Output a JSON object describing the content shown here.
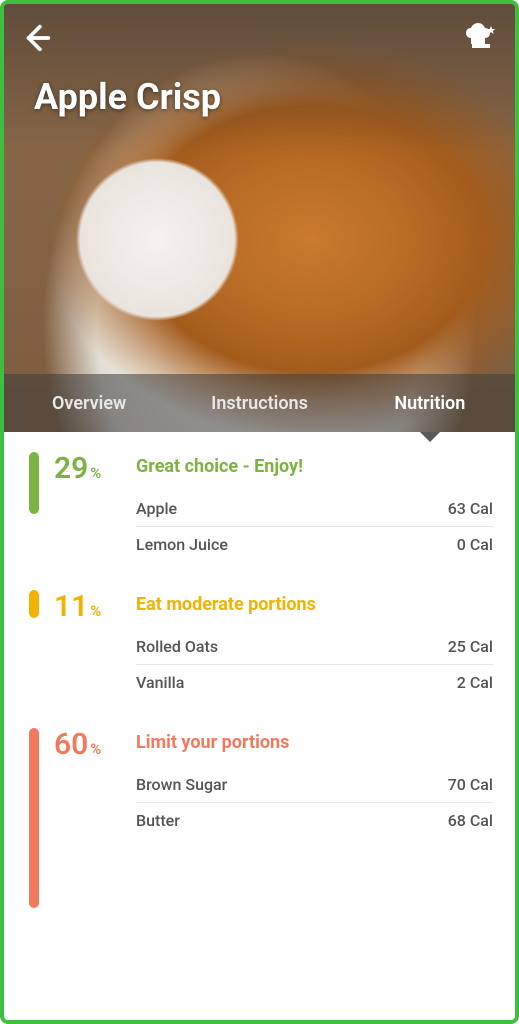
{
  "recipe": {
    "title": "Apple Crisp"
  },
  "tabs": {
    "overview": "Overview",
    "instructions": "Instructions",
    "nutrition": "Nutrition",
    "active": "nutrition"
  },
  "colors": {
    "green": "#7cb342",
    "yellow": "#f2b200",
    "orange": "#f3795c",
    "text_green": "#7cb342",
    "text_yellow": "#f2b200",
    "text_orange": "#f3795c"
  },
  "nutrition_groups": [
    {
      "id": "green",
      "percent": 29,
      "title": "Great choice - Enjoy!",
      "pill_height": 62,
      "items": [
        {
          "name": "Apple",
          "cal": "63 Cal"
        },
        {
          "name": "Lemon Juice",
          "cal": "0 Cal"
        }
      ]
    },
    {
      "id": "yellow",
      "percent": 11,
      "title": "Eat moderate portions",
      "pill_height": 28,
      "items": [
        {
          "name": "Rolled Oats",
          "cal": "25 Cal"
        },
        {
          "name": "Vanilla",
          "cal": "2 Cal"
        }
      ]
    },
    {
      "id": "orange",
      "percent": 60,
      "title": "Limit your portions",
      "pill_height": 180,
      "items": [
        {
          "name": "Brown Sugar",
          "cal": "70 Cal"
        },
        {
          "name": "Butter",
          "cal": "68 Cal"
        }
      ]
    }
  ]
}
